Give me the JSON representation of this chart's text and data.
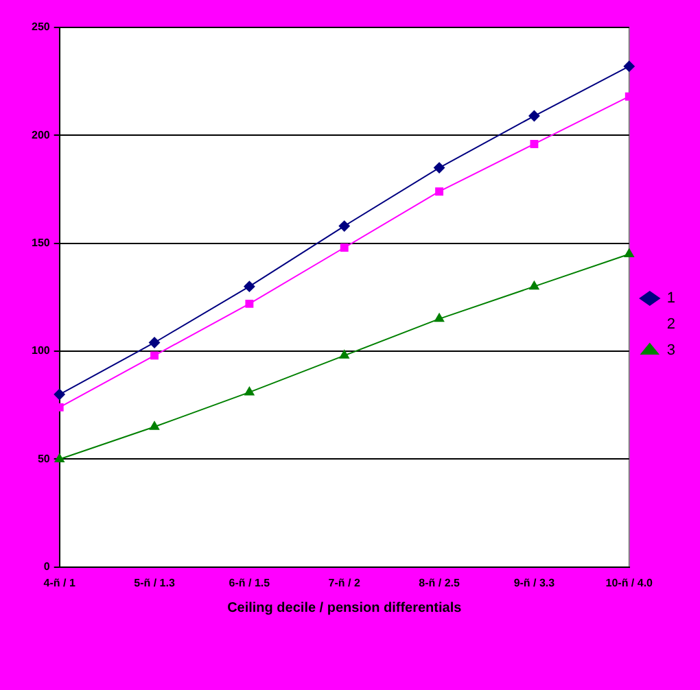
{
  "chart_data": {
    "type": "line",
    "xlabel": "Ceiling decile / pension differentials",
    "categories": [
      "4-ñ / 1",
      "5-ñ / 1.3",
      "6-ñ / 1.5",
      "7-ñ / 2",
      "8-ñ / 2.5",
      "9-ñ / 3.3",
      "10-ñ / 4.0"
    ],
    "series": [
      {
        "name": "1",
        "color": "#000080",
        "marker": "diamond",
        "values": [
          80,
          104,
          130,
          158,
          185,
          209,
          232
        ]
      },
      {
        "name": "2",
        "color": "#ff00ff",
        "marker": "square",
        "values": [
          74,
          98,
          122,
          148,
          174,
          196,
          218
        ]
      },
      {
        "name": "3",
        "color": "#008000",
        "marker": "triangle",
        "values": [
          50,
          65,
          81,
          98,
          115,
          130,
          145
        ]
      }
    ],
    "ylim": [
      0,
      250
    ],
    "yticks": [
      0,
      50,
      100,
      150,
      200,
      250
    ],
    "grid": "y",
    "legend": "right"
  }
}
